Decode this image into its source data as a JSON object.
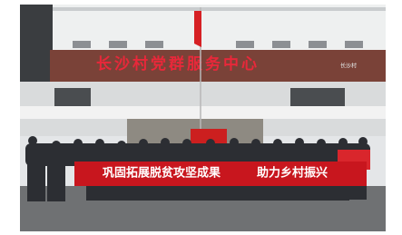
{
  "sign": {
    "title": "长沙村党群服务中心",
    "logo": "长沙村"
  },
  "banner": {
    "left": "巩固拓展脱贫攻坚成果",
    "right": "助力乡村振兴"
  }
}
